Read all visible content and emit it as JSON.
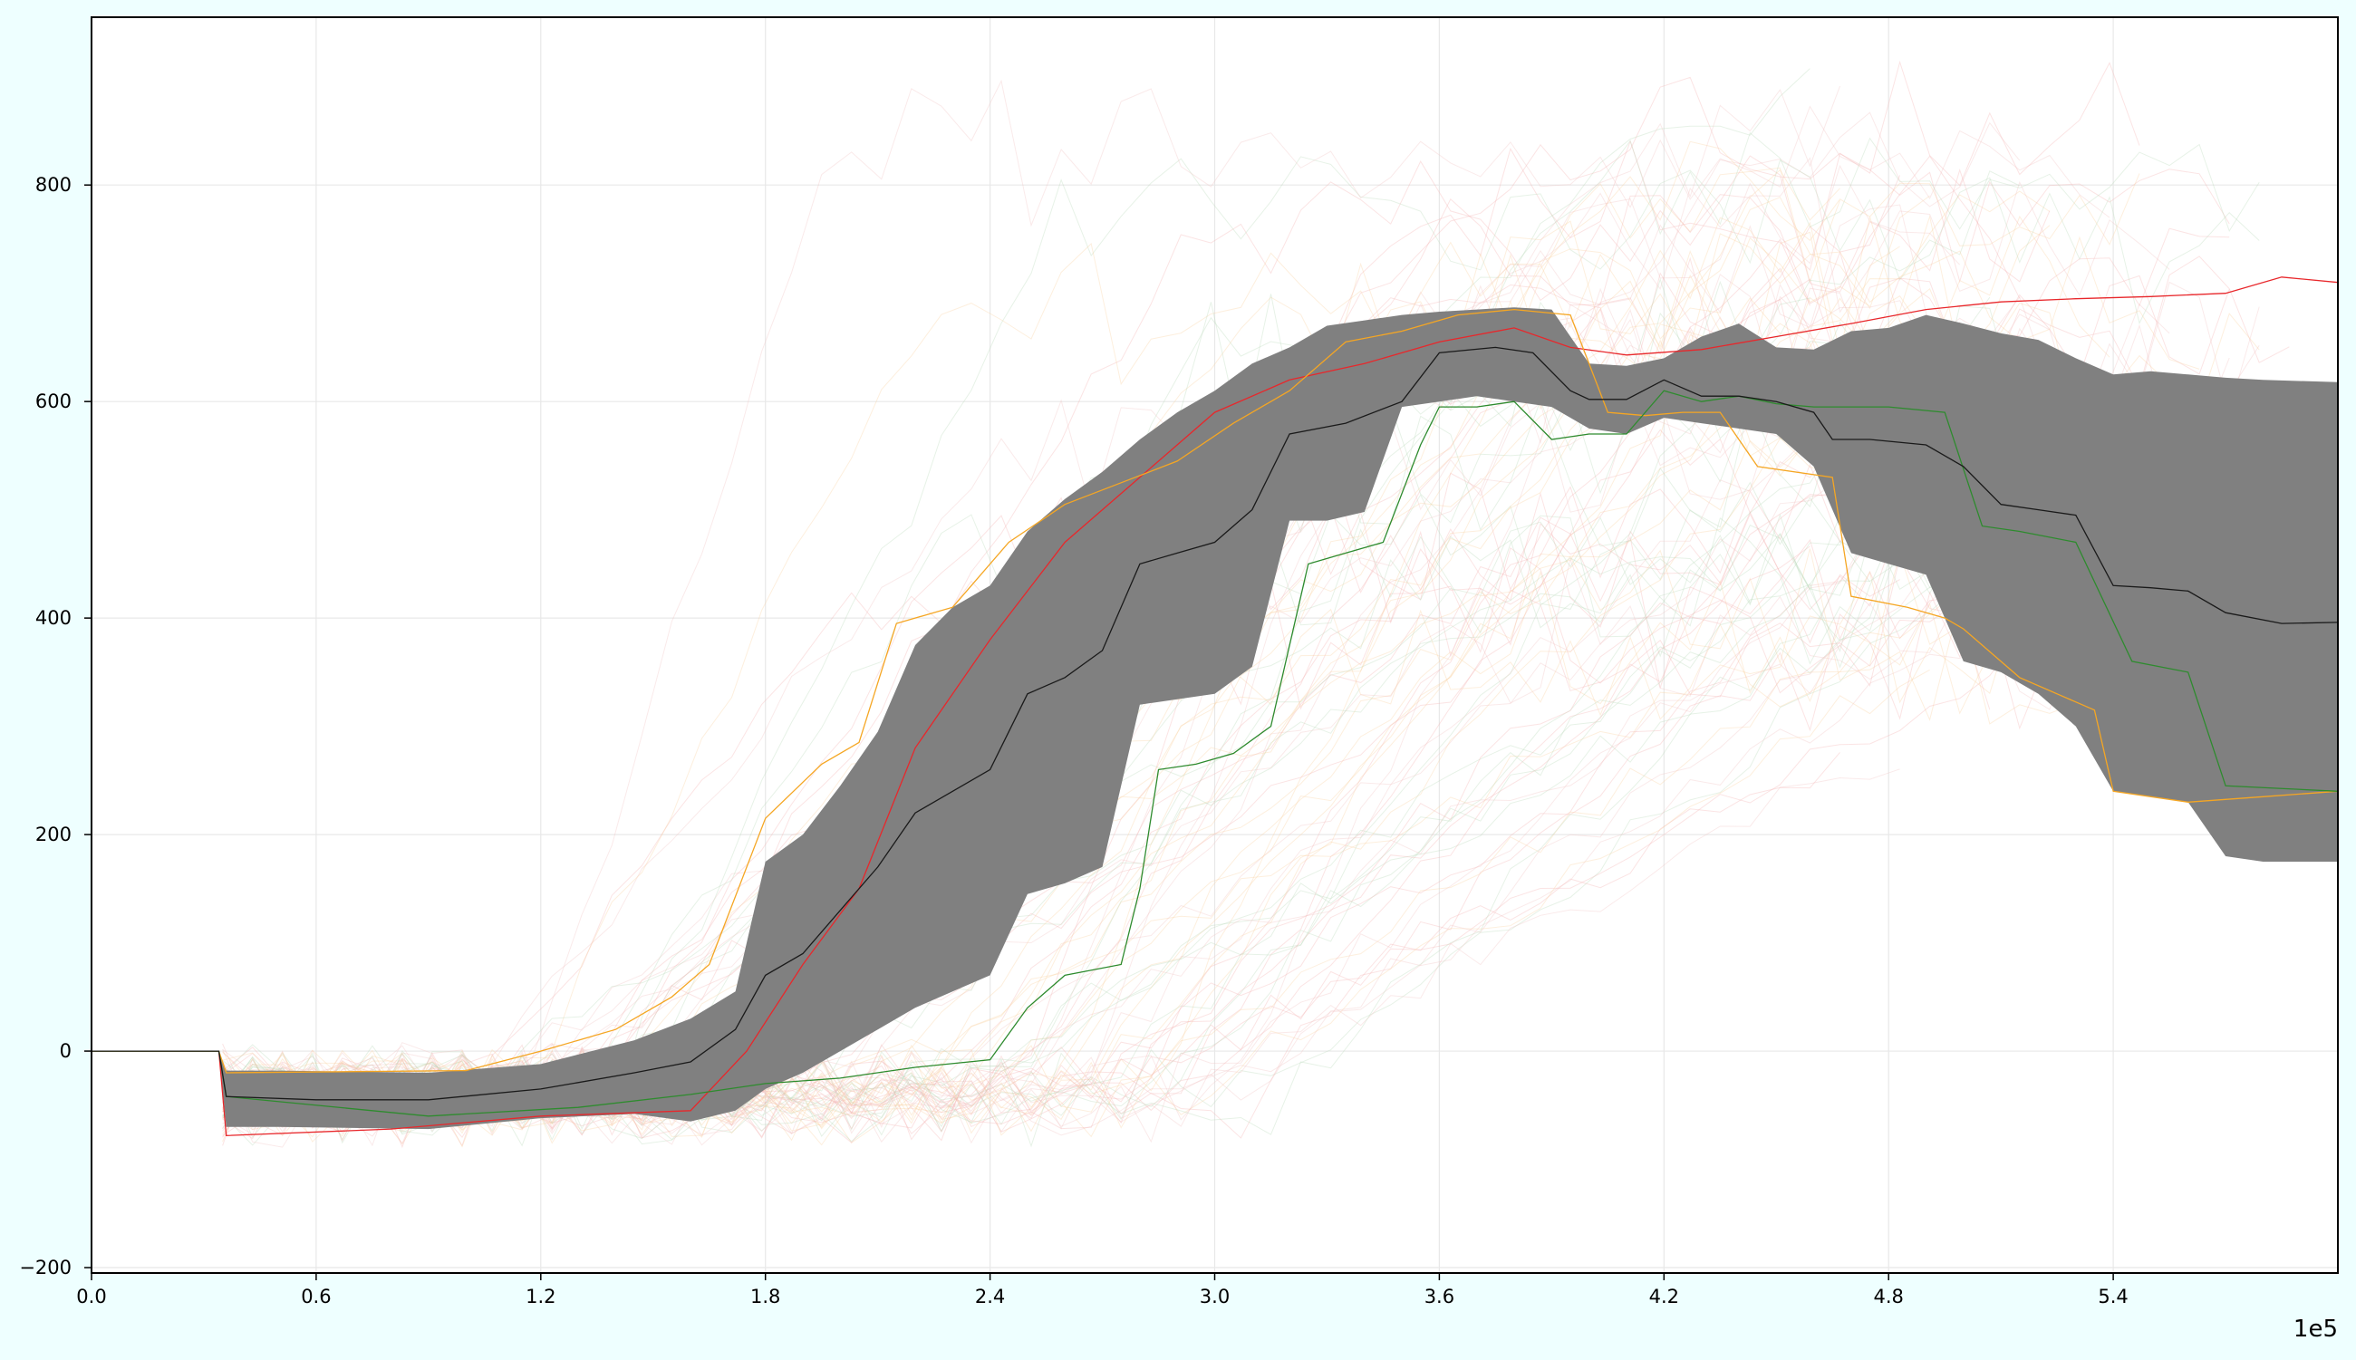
{
  "chart_data": {
    "type": "line",
    "title": "",
    "xlabel": "",
    "ylabel": "",
    "x_offset_label": "1e5",
    "xlim": [
      0,
      6.0
    ],
    "ylim": [
      -205,
      955
    ],
    "xticks": [
      {
        "value": 0.0,
        "label": "0.0"
      },
      {
        "value": 0.6,
        "label": "0.6"
      },
      {
        "value": 1.2,
        "label": "1.2"
      },
      {
        "value": 1.8,
        "label": "1.8"
      },
      {
        "value": 2.4,
        "label": "2.4"
      },
      {
        "value": 3.0,
        "label": "3.0"
      },
      {
        "value": 3.6,
        "label": "3.6"
      },
      {
        "value": 4.2,
        "label": "4.2"
      },
      {
        "value": 4.8,
        "label": "4.8"
      },
      {
        "value": 5.4,
        "label": "5.4"
      }
    ],
    "yticks": [
      {
        "value": -200,
        "label": "−200"
      },
      {
        "value": 0,
        "label": "0"
      },
      {
        "value": 200,
        "label": "200"
      },
      {
        "value": 400,
        "label": "400"
      },
      {
        "value": 600,
        "label": "600"
      },
      {
        "value": 800,
        "label": "800"
      }
    ],
    "grid": true,
    "legend": "none",
    "band": {
      "color": "#808080",
      "x": [
        0,
        0.34,
        0.36,
        0.5,
        0.9,
        1.2,
        1.45,
        1.6,
        1.72,
        1.8,
        1.9,
        2.0,
        2.1,
        2.2,
        2.3,
        2.4,
        2.5,
        2.6,
        2.7,
        2.8,
        2.9,
        3.0,
        3.1,
        3.2,
        3.3,
        3.4,
        3.5,
        3.6,
        3.7,
        3.8,
        3.9,
        4.0,
        4.1,
        4.2,
        4.3,
        4.4,
        4.5,
        4.6,
        4.7,
        4.8,
        4.9,
        5.0,
        5.1,
        5.2,
        5.3,
        5.4,
        5.5,
        5.6,
        5.7,
        5.8,
        6.0
      ],
      "upper": [
        0,
        0,
        -18,
        -18,
        -20,
        -12,
        10,
        30,
        55,
        175,
        200,
        245,
        295,
        375,
        410,
        430,
        480,
        510,
        535,
        565,
        590,
        610,
        635,
        650,
        670,
        675,
        680,
        683,
        685,
        687,
        685,
        635,
        633,
        640,
        660,
        672,
        650,
        648,
        665,
        668,
        680,
        672,
        663,
        657,
        640,
        625,
        628,
        625,
        622,
        620,
        618
      ],
      "lower": [
        0,
        0,
        -70,
        -70,
        -72,
        -62,
        -58,
        -65,
        -55,
        -35,
        -20,
        0,
        20,
        40,
        55,
        70,
        145,
        155,
        170,
        320,
        325,
        330,
        355,
        490,
        490,
        498,
        595,
        600,
        605,
        600,
        595,
        575,
        570,
        585,
        580,
        575,
        570,
        540,
        460,
        450,
        440,
        360,
        350,
        330,
        300,
        240,
        235,
        230,
        180,
        175,
        175
      ]
    },
    "series": [
      {
        "color": "#e8272b",
        "x": [
          0,
          0.34,
          0.36,
          0.8,
          1.2,
          1.6,
          1.75,
          1.9,
          2.05,
          2.2,
          2.4,
          2.6,
          2.8,
          3.0,
          3.2,
          3.4,
          3.6,
          3.8,
          3.95,
          4.1,
          4.3,
          4.5,
          4.7,
          4.9,
          5.1,
          5.3,
          5.5,
          5.7,
          5.85,
          6.0
        ],
        "y": [
          0,
          0,
          -78,
          -72,
          -60,
          -55,
          0,
          80,
          150,
          280,
          380,
          470,
          530,
          590,
          620,
          635,
          655,
          668,
          650,
          643,
          648,
          660,
          672,
          685,
          692,
          695,
          697,
          700,
          715,
          710
        ]
      },
      {
        "color": "#f5a623",
        "x": [
          0,
          0.34,
          0.36,
          1.0,
          1.2,
          1.4,
          1.55,
          1.65,
          1.8,
          1.95,
          2.05,
          2.15,
          2.3,
          2.45,
          2.6,
          2.75,
          2.9,
          3.05,
          3.2,
          3.35,
          3.5,
          3.65,
          3.8,
          3.95,
          4.05,
          4.15,
          4.25,
          4.35,
          4.45,
          4.65,
          4.7,
          4.85,
          4.95,
          5.0,
          5.15,
          5.25,
          5.35,
          5.4,
          5.6,
          5.8,
          6.0
        ],
        "y": [
          0,
          0,
          -20,
          -18,
          0,
          20,
          50,
          80,
          215,
          265,
          285,
          395,
          410,
          470,
          505,
          525,
          545,
          580,
          610,
          655,
          665,
          680,
          685,
          680,
          590,
          587,
          590,
          590,
          540,
          530,
          420,
          410,
          400,
          390,
          345,
          330,
          315,
          240,
          230,
          235,
          240
        ]
      },
      {
        "color": "#2e8b2e",
        "x": [
          0,
          0.34,
          0.36,
          0.9,
          1.3,
          1.6,
          1.8,
          2.0,
          2.2,
          2.4,
          2.5,
          2.6,
          2.75,
          2.8,
          2.85,
          2.95,
          3.05,
          3.15,
          3.25,
          3.35,
          3.45,
          3.55,
          3.6,
          3.7,
          3.8,
          3.9,
          4.0,
          4.1,
          4.2,
          4.3,
          4.4,
          4.5,
          4.6,
          4.8,
          4.95,
          5.05,
          5.15,
          5.3,
          5.45,
          5.6,
          5.7,
          6.0
        ],
        "y": [
          0,
          0,
          -42,
          -60,
          -52,
          -40,
          -30,
          -25,
          -15,
          -8,
          40,
          70,
          80,
          150,
          260,
          265,
          275,
          300,
          450,
          460,
          470,
          560,
          595,
          595,
          600,
          565,
          570,
          570,
          610,
          600,
          605,
          598,
          595,
          595,
          590,
          485,
          480,
          470,
          360,
          350,
          245,
          240
        ]
      },
      {
        "color": "#1a1a1a",
        "x": [
          0,
          0.34,
          0.36,
          0.6,
          0.9,
          1.2,
          1.45,
          1.6,
          1.72,
          1.8,
          1.9,
          2.0,
          2.1,
          2.2,
          2.3,
          2.4,
          2.5,
          2.6,
          2.7,
          2.8,
          2.9,
          3.0,
          3.1,
          3.2,
          3.35,
          3.5,
          3.6,
          3.75,
          3.85,
          3.95,
          4.0,
          4.1,
          4.2,
          4.3,
          4.4,
          4.5,
          4.6,
          4.65,
          4.75,
          4.9,
          5.0,
          5.1,
          5.2,
          5.3,
          5.4,
          5.5,
          5.6,
          5.7,
          5.85,
          6.0
        ],
        "y": [
          0,
          0,
          -42,
          -45,
          -45,
          -35,
          -20,
          -10,
          20,
          70,
          90,
          130,
          170,
          220,
          240,
          260,
          330,
          345,
          370,
          450,
          460,
          470,
          500,
          570,
          580,
          600,
          645,
          650,
          645,
          610,
          602,
          602,
          620,
          605,
          605,
          600,
          590,
          565,
          565,
          560,
          540,
          505,
          500,
          495,
          430,
          428,
          425,
          405,
          395,
          396
        ]
      }
    ]
  }
}
